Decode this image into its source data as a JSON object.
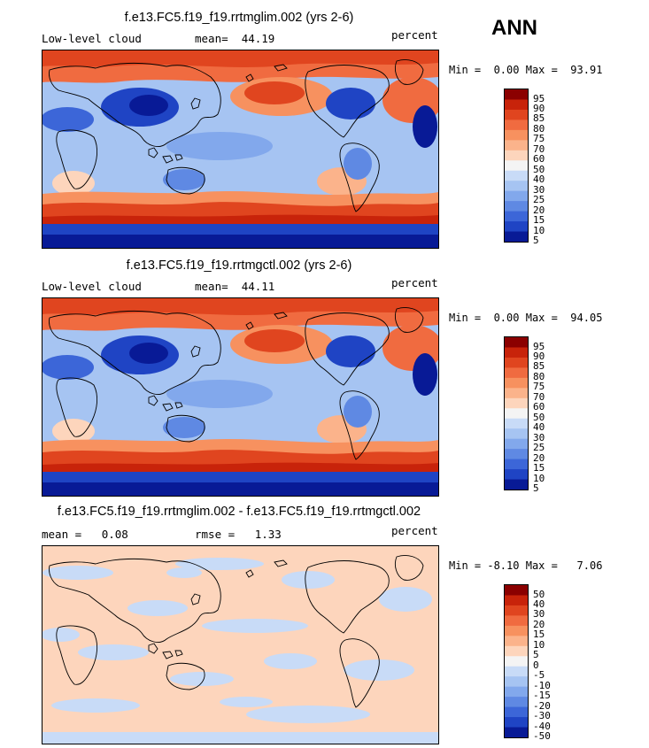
{
  "season": "ANN",
  "chart_data": [
    {
      "type": "heatmap",
      "title": "f.e13.FC5.f19_f19.rrtmglim.002 (yrs 2-6)",
      "left_label": "Low-level cloud",
      "mean_label": "mean=",
      "mean_value": "44.19",
      "units": "percent",
      "min_label": "Min =",
      "min_value": "0.00",
      "max_label": "Max =",
      "max_value": "93.91",
      "levels": [
        "95",
        "90",
        "85",
        "80",
        "75",
        "70",
        "60",
        "50",
        "40",
        "30",
        "25",
        "20",
        "15",
        "10",
        "5"
      ],
      "colors": [
        "#8b0000",
        "#c8230a",
        "#e0451f",
        "#f06b40",
        "#f7915f",
        "#fbb38b",
        "#fdd5bc",
        "#f4f4f4",
        "#c8dbf7",
        "#a6c4f2",
        "#82a8ec",
        "#5f89e3",
        "#3c66d8",
        "#1f44c4",
        "#081a96"
      ]
    },
    {
      "type": "heatmap",
      "title": "f.e13.FC5.f19_f19.rrtmgctl.002 (yrs 2-6)",
      "left_label": "Low-level cloud",
      "mean_label": "mean=",
      "mean_value": "44.11",
      "units": "percent",
      "min_label": "Min =",
      "min_value": "0.00",
      "max_label": "Max =",
      "max_value": "94.05",
      "levels": [
        "95",
        "90",
        "85",
        "80",
        "75",
        "70",
        "60",
        "50",
        "40",
        "30",
        "25",
        "20",
        "15",
        "10",
        "5"
      ],
      "colors": [
        "#8b0000",
        "#c8230a",
        "#e0451f",
        "#f06b40",
        "#f7915f",
        "#fbb38b",
        "#fdd5bc",
        "#f4f4f4",
        "#c8dbf7",
        "#a6c4f2",
        "#82a8ec",
        "#5f89e3",
        "#3c66d8",
        "#1f44c4",
        "#081a96"
      ]
    },
    {
      "type": "heatmap",
      "title": "f.e13.FC5.f19_f19.rrtmglim.002 - f.e13.FC5.f19_f19.rrtmgctl.002",
      "left_label": "mean =",
      "mean_value": "0.08",
      "rmse_label": "rmse =",
      "rmse_value": "1.33",
      "units": "percent",
      "min_label": "Min =",
      "min_value": "-8.10",
      "max_label": "Max =",
      "max_value": "7.06",
      "levels": [
        "50",
        "40",
        "30",
        "20",
        "15",
        "10",
        "5",
        "0",
        "-5",
        "-10",
        "-15",
        "-20",
        "-30",
        "-40",
        "-50"
      ],
      "colors": [
        "#8b0000",
        "#c8230a",
        "#e0451f",
        "#f06b40",
        "#f7915f",
        "#fbb38b",
        "#fdd5bc",
        "#f4f4f4",
        "#c8dbf7",
        "#a6c4f2",
        "#82a8ec",
        "#5f89e3",
        "#3c66d8",
        "#1f44c4",
        "#081a96"
      ]
    }
  ]
}
